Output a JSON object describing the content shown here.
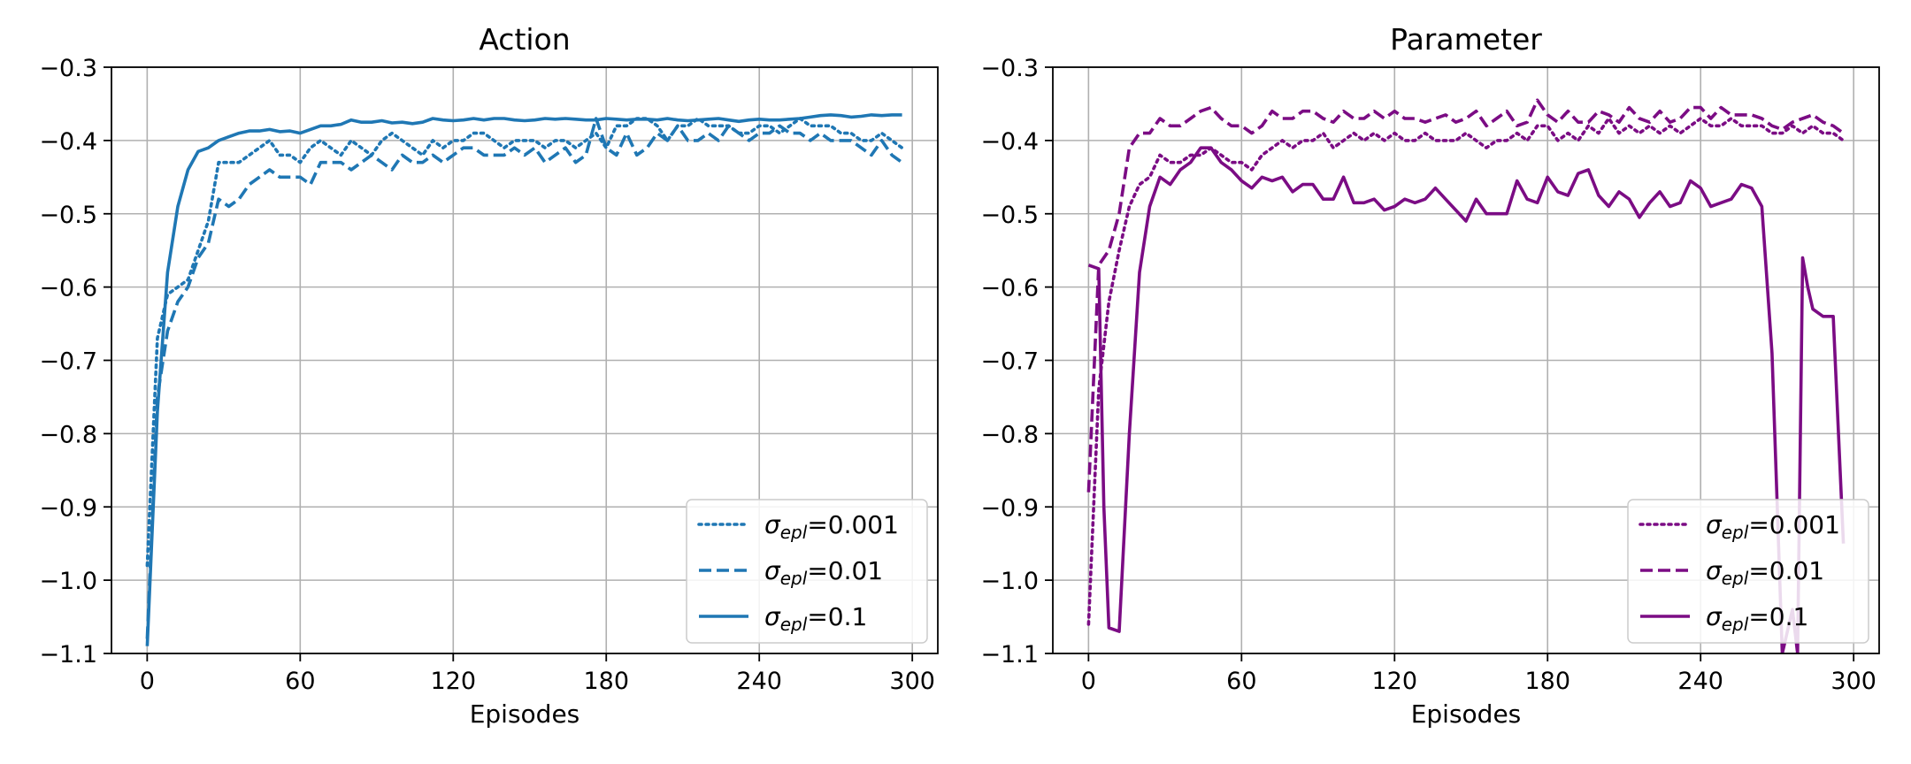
{
  "chart_data": [
    {
      "type": "line",
      "title": "Action",
      "xlabel": "Episodes",
      "ylabel": "",
      "xlim": [
        -14,
        310
      ],
      "ylim": [
        -1.1,
        -0.3
      ],
      "xticks": [
        "0",
        "60",
        "120",
        "180",
        "240",
        "300"
      ],
      "yticks": [
        "−0.3",
        "−0.4",
        "−0.5",
        "−0.6",
        "−0.7",
        "−0.8",
        "−0.9",
        "−1.0",
        "−1.1"
      ],
      "grid": true,
      "legend_position": "lower-right",
      "color": "#1f77b4",
      "series": [
        {
          "name": "0.001",
          "style": "dotted",
          "x": [
            0,
            4,
            8,
            12,
            16,
            20,
            24,
            28,
            32,
            36,
            40,
            44,
            48,
            52,
            56,
            60,
            64,
            68,
            72,
            76,
            80,
            84,
            88,
            92,
            96,
            100,
            104,
            108,
            112,
            116,
            120,
            124,
            128,
            132,
            136,
            140,
            144,
            148,
            152,
            156,
            160,
            164,
            168,
            172,
            176,
            180,
            184,
            188,
            192,
            196,
            200,
            204,
            208,
            212,
            216,
            220,
            224,
            228,
            232,
            236,
            240,
            244,
            248,
            252,
            256,
            260,
            264,
            268,
            272,
            276,
            280,
            284,
            288,
            292,
            296
          ],
          "y": [
            -0.98,
            -0.67,
            -0.61,
            -0.6,
            -0.59,
            -0.55,
            -0.51,
            -0.43,
            -0.43,
            -0.43,
            -0.42,
            -0.41,
            -0.4,
            -0.42,
            -0.42,
            -0.43,
            -0.41,
            -0.4,
            -0.41,
            -0.42,
            -0.4,
            -0.41,
            -0.42,
            -0.4,
            -0.39,
            -0.4,
            -0.41,
            -0.42,
            -0.4,
            -0.41,
            -0.4,
            -0.4,
            -0.39,
            -0.39,
            -0.4,
            -0.41,
            -0.4,
            -0.4,
            -0.4,
            -0.41,
            -0.4,
            -0.4,
            -0.41,
            -0.4,
            -0.39,
            -0.41,
            -0.38,
            -0.38,
            -0.37,
            -0.37,
            -0.38,
            -0.4,
            -0.38,
            -0.38,
            -0.37,
            -0.38,
            -0.38,
            -0.38,
            -0.39,
            -0.39,
            -0.38,
            -0.38,
            -0.39,
            -0.38,
            -0.37,
            -0.38,
            -0.38,
            -0.38,
            -0.39,
            -0.39,
            -0.4,
            -0.4,
            -0.39,
            -0.4,
            -0.41
          ]
        },
        {
          "name": "0.01",
          "style": "dashed",
          "x": [
            0,
            4,
            8,
            12,
            16,
            20,
            24,
            28,
            32,
            36,
            40,
            44,
            48,
            52,
            56,
            60,
            64,
            68,
            72,
            76,
            80,
            84,
            88,
            92,
            96,
            100,
            104,
            108,
            112,
            116,
            120,
            124,
            128,
            132,
            136,
            140,
            144,
            148,
            152,
            156,
            160,
            164,
            168,
            172,
            176,
            180,
            184,
            188,
            192,
            196,
            200,
            204,
            208,
            212,
            216,
            220,
            224,
            228,
            232,
            236,
            240,
            244,
            248,
            252,
            256,
            260,
            264,
            268,
            272,
            276,
            280,
            284,
            288,
            292,
            296
          ],
          "y": [
            -1.08,
            -0.75,
            -0.66,
            -0.62,
            -0.6,
            -0.56,
            -0.54,
            -0.48,
            -0.49,
            -0.48,
            -0.46,
            -0.45,
            -0.44,
            -0.45,
            -0.45,
            -0.45,
            -0.46,
            -0.43,
            -0.43,
            -0.43,
            -0.44,
            -0.43,
            -0.42,
            -0.43,
            -0.44,
            -0.42,
            -0.43,
            -0.43,
            -0.42,
            -0.43,
            -0.42,
            -0.41,
            -0.41,
            -0.42,
            -0.42,
            -0.42,
            -0.41,
            -0.42,
            -0.41,
            -0.43,
            -0.42,
            -0.41,
            -0.43,
            -0.42,
            -0.37,
            -0.41,
            -0.42,
            -0.39,
            -0.42,
            -0.41,
            -0.39,
            -0.4,
            -0.38,
            -0.4,
            -0.4,
            -0.39,
            -0.4,
            -0.38,
            -0.39,
            -0.4,
            -0.39,
            -0.39,
            -0.38,
            -0.39,
            -0.39,
            -0.4,
            -0.39,
            -0.4,
            -0.4,
            -0.4,
            -0.41,
            -0.42,
            -0.4,
            -0.42,
            -0.43
          ]
        },
        {
          "name": "0.1",
          "style": "solid",
          "x": [
            0,
            4,
            8,
            12,
            16,
            20,
            24,
            28,
            32,
            36,
            40,
            44,
            48,
            52,
            56,
            60,
            64,
            68,
            72,
            76,
            80,
            84,
            88,
            92,
            96,
            100,
            104,
            108,
            112,
            116,
            120,
            124,
            128,
            132,
            136,
            140,
            144,
            148,
            152,
            156,
            160,
            164,
            168,
            172,
            176,
            180,
            184,
            188,
            192,
            196,
            200,
            204,
            208,
            212,
            216,
            220,
            224,
            228,
            232,
            236,
            240,
            244,
            248,
            252,
            256,
            260,
            264,
            268,
            272,
            276,
            280,
            284,
            288,
            292,
            296
          ],
          "y": [
            -1.09,
            -0.77,
            -0.58,
            -0.49,
            -0.44,
            -0.415,
            -0.41,
            -0.4,
            -0.395,
            -0.39,
            -0.387,
            -0.387,
            -0.385,
            -0.388,
            -0.387,
            -0.39,
            -0.385,
            -0.38,
            -0.38,
            -0.378,
            -0.372,
            -0.375,
            -0.375,
            -0.373,
            -0.376,
            -0.375,
            -0.377,
            -0.375,
            -0.37,
            -0.372,
            -0.373,
            -0.372,
            -0.37,
            -0.372,
            -0.37,
            -0.37,
            -0.372,
            -0.373,
            -0.372,
            -0.37,
            -0.371,
            -0.37,
            -0.371,
            -0.372,
            -0.372,
            -0.37,
            -0.371,
            -0.372,
            -0.371,
            -0.371,
            -0.372,
            -0.37,
            -0.372,
            -0.373,
            -0.372,
            -0.371,
            -0.37,
            -0.372,
            -0.374,
            -0.372,
            -0.371,
            -0.372,
            -0.372,
            -0.371,
            -0.37,
            -0.368,
            -0.366,
            -0.365,
            -0.366,
            -0.368,
            -0.367,
            -0.365,
            -0.366,
            -0.365,
            -0.365
          ]
        }
      ]
    },
    {
      "type": "line",
      "title": "Parameter",
      "xlabel": "Episodes",
      "ylabel": "",
      "xlim": [
        -14,
        310
      ],
      "ylim": [
        -1.1,
        -0.3
      ],
      "xticks": [
        "0",
        "60",
        "120",
        "180",
        "240",
        "300"
      ],
      "yticks": [
        "−0.3",
        "−0.4",
        "−0.5",
        "−0.6",
        "−0.7",
        "−0.8",
        "−0.9",
        "−1.0",
        "−1.1"
      ],
      "grid": true,
      "legend_position": "lower-right",
      "color": "#7b0c84",
      "series": [
        {
          "name": "0.001",
          "style": "dotted",
          "x": [
            0,
            4,
            8,
            12,
            16,
            20,
            24,
            28,
            32,
            36,
            40,
            44,
            48,
            52,
            56,
            60,
            64,
            68,
            72,
            76,
            80,
            84,
            88,
            92,
            96,
            100,
            104,
            108,
            112,
            116,
            120,
            124,
            128,
            132,
            136,
            140,
            144,
            148,
            152,
            156,
            160,
            164,
            168,
            172,
            176,
            180,
            184,
            188,
            192,
            196,
            200,
            204,
            208,
            212,
            216,
            220,
            224,
            228,
            232,
            236,
            240,
            244,
            248,
            252,
            256,
            260,
            264,
            268,
            272,
            276,
            280,
            284,
            288,
            292,
            296
          ],
          "y": [
            -1.06,
            -0.74,
            -0.62,
            -0.55,
            -0.49,
            -0.46,
            -0.45,
            -0.42,
            -0.43,
            -0.43,
            -0.42,
            -0.42,
            -0.41,
            -0.42,
            -0.43,
            -0.43,
            -0.44,
            -0.42,
            -0.41,
            -0.4,
            -0.41,
            -0.4,
            -0.4,
            -0.39,
            -0.41,
            -0.4,
            -0.39,
            -0.4,
            -0.39,
            -0.4,
            -0.39,
            -0.4,
            -0.4,
            -0.39,
            -0.4,
            -0.4,
            -0.4,
            -0.39,
            -0.4,
            -0.41,
            -0.4,
            -0.4,
            -0.39,
            -0.4,
            -0.38,
            -0.38,
            -0.4,
            -0.39,
            -0.4,
            -0.38,
            -0.39,
            -0.37,
            -0.39,
            -0.38,
            -0.39,
            -0.38,
            -0.39,
            -0.38,
            -0.39,
            -0.38,
            -0.37,
            -0.38,
            -0.38,
            -0.37,
            -0.38,
            -0.38,
            -0.38,
            -0.39,
            -0.39,
            -0.38,
            -0.39,
            -0.38,
            -0.39,
            -0.39,
            -0.4
          ]
        },
        {
          "name": "0.01",
          "style": "dashed",
          "x": [
            0,
            4,
            8,
            12,
            16,
            20,
            24,
            28,
            32,
            36,
            40,
            44,
            48,
            52,
            56,
            60,
            64,
            68,
            72,
            76,
            80,
            84,
            88,
            92,
            96,
            100,
            104,
            108,
            112,
            116,
            120,
            124,
            128,
            132,
            136,
            140,
            144,
            148,
            152,
            156,
            160,
            164,
            168,
            172,
            176,
            180,
            184,
            188,
            192,
            196,
            200,
            204,
            208,
            212,
            216,
            220,
            224,
            228,
            232,
            236,
            240,
            244,
            248,
            252,
            256,
            260,
            264,
            268,
            272,
            276,
            280,
            284,
            288,
            292,
            296
          ],
          "y": [
            -0.88,
            -0.57,
            -0.55,
            -0.5,
            -0.41,
            -0.39,
            -0.39,
            -0.37,
            -0.38,
            -0.38,
            -0.37,
            -0.36,
            -0.355,
            -0.37,
            -0.38,
            -0.38,
            -0.39,
            -0.38,
            -0.36,
            -0.37,
            -0.37,
            -0.36,
            -0.36,
            -0.37,
            -0.375,
            -0.36,
            -0.37,
            -0.37,
            -0.36,
            -0.37,
            -0.36,
            -0.37,
            -0.37,
            -0.375,
            -0.37,
            -0.365,
            -0.375,
            -0.37,
            -0.36,
            -0.38,
            -0.37,
            -0.36,
            -0.38,
            -0.375,
            -0.345,
            -0.365,
            -0.375,
            -0.36,
            -0.375,
            -0.375,
            -0.36,
            -0.365,
            -0.375,
            -0.355,
            -0.37,
            -0.375,
            -0.36,
            -0.375,
            -0.37,
            -0.355,
            -0.355,
            -0.37,
            -0.355,
            -0.365,
            -0.365,
            -0.365,
            -0.37,
            -0.38,
            -0.385,
            -0.375,
            -0.37,
            -0.365,
            -0.375,
            -0.38,
            -0.39
          ]
        },
        {
          "name": "0.1",
          "style": "solid",
          "x": [
            0,
            4,
            6,
            8,
            12,
            16,
            20,
            24,
            28,
            32,
            36,
            40,
            44,
            48,
            52,
            56,
            60,
            64,
            68,
            72,
            76,
            80,
            84,
            88,
            92,
            96,
            100,
            104,
            108,
            112,
            116,
            120,
            124,
            128,
            132,
            136,
            140,
            144,
            148,
            152,
            156,
            160,
            164,
            168,
            172,
            176,
            180,
            184,
            188,
            192,
            196,
            200,
            204,
            208,
            212,
            216,
            220,
            224,
            228,
            232,
            236,
            240,
            244,
            248,
            252,
            256,
            260,
            264,
            268,
            272,
            276,
            278,
            280,
            282,
            284,
            288,
            292,
            296
          ],
          "y": [
            -0.57,
            -0.575,
            -0.9,
            -1.065,
            -1.07,
            -0.8,
            -0.58,
            -0.49,
            -0.45,
            -0.46,
            -0.44,
            -0.43,
            -0.41,
            -0.41,
            -0.43,
            -0.44,
            -0.455,
            -0.465,
            -0.45,
            -0.455,
            -0.45,
            -0.47,
            -0.46,
            -0.46,
            -0.48,
            -0.48,
            -0.45,
            -0.485,
            -0.485,
            -0.48,
            -0.495,
            -0.49,
            -0.48,
            -0.485,
            -0.48,
            -0.465,
            -0.48,
            -0.495,
            -0.51,
            -0.48,
            -0.5,
            -0.5,
            -0.5,
            -0.455,
            -0.48,
            -0.485,
            -0.45,
            -0.47,
            -0.475,
            -0.445,
            -0.44,
            -0.475,
            -0.49,
            -0.47,
            -0.48,
            -0.505,
            -0.485,
            -0.47,
            -0.49,
            -0.485,
            -0.455,
            -0.465,
            -0.49,
            -0.485,
            -0.48,
            -0.46,
            -0.465,
            -0.49,
            -0.69,
            -1.1,
            -1.04,
            -1.1,
            -0.56,
            -0.6,
            -0.63,
            -0.64,
            -0.64,
            -0.95
          ]
        }
      ]
    }
  ],
  "legend_symbol": "σ",
  "legend_subscript": "epl",
  "legend_sep": "="
}
